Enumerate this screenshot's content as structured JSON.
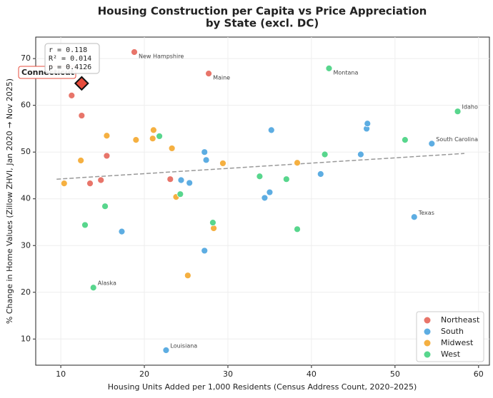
{
  "chart_data": {
    "type": "scatter",
    "title": [
      "Housing Construction per Capita vs Price Appreciation",
      "by State (excl. DC)"
    ],
    "x_label": "Housing Units Added per 1,000 Residents (Census Address Count, 2020–2025)",
    "y_label": "% Change in Home Values (Zillow ZHVI, Jan 2020 → Nov 2025)",
    "xlim": [
      7.0,
      61.3
    ],
    "ylim": [
      4.4,
      74.6
    ],
    "xticks": [
      10,
      20,
      30,
      40,
      50,
      60
    ],
    "yticks": [
      10,
      20,
      30,
      40,
      50,
      60,
      70
    ],
    "grid": true,
    "legend": "lower right",
    "stats": [
      "r = 0.118",
      "R² = 0.014",
      "p = 0.4126"
    ],
    "trendline": {
      "color": "#999999",
      "x": [
        9.5,
        58.3
      ],
      "y": [
        44.2,
        49.7
      ]
    },
    "highlight": {
      "label": "Connecticut",
      "color": "#e74c3c",
      "x": 12.5,
      "y": 64.7
    },
    "series": [
      {
        "name": "Northeast",
        "color": "#e8756a",
        "x": [
          18.8,
          27.7,
          11.3,
          12.5,
          15.5,
          13.5,
          14.8,
          23.1
        ],
        "y": [
          71.4,
          66.8,
          62.1,
          57.8,
          49.2,
          43.3,
          44.0,
          44.2
        ],
        "labels": [
          "New Hampshire",
          "Maine",
          null,
          null,
          null,
          null,
          null,
          null
        ]
      },
      {
        "name": "South",
        "color": "#5dade2",
        "x": [
          17.3,
          22.6,
          24.4,
          25.4,
          27.2,
          27.4,
          27.2,
          35.2,
          34.4,
          35.0,
          41.1,
          45.9,
          46.6,
          46.7,
          54.4,
          52.3
        ],
        "y": [
          33.0,
          7.6,
          44.0,
          43.4,
          50.0,
          48.3,
          28.9,
          54.7,
          40.2,
          41.4,
          45.3,
          49.5,
          55.0,
          56.1,
          51.8,
          36.1
        ],
        "labels": [
          null,
          "Louisiana",
          null,
          null,
          null,
          null,
          null,
          null,
          null,
          null,
          null,
          null,
          null,
          null,
          "South Carolina",
          "Texas"
        ]
      },
      {
        "name": "Midwest",
        "color": "#f5b041",
        "x": [
          10.4,
          12.4,
          15.5,
          19.0,
          21.0,
          21.1,
          23.3,
          23.8,
          29.4,
          38.3,
          28.3,
          25.2
        ],
        "y": [
          43.3,
          48.2,
          53.5,
          52.6,
          52.9,
          54.7,
          50.8,
          40.4,
          47.6,
          47.7,
          33.7,
          23.6
        ],
        "labels": [
          null,
          null,
          null,
          null,
          null,
          null,
          null,
          null,
          null,
          null,
          null,
          null
        ]
      },
      {
        "name": "West",
        "color": "#58d68d",
        "x": [
          13.9,
          12.9,
          15.3,
          21.8,
          24.3,
          28.2,
          33.8,
          37.0,
          38.3,
          41.6,
          42.1,
          51.2,
          57.5
        ],
        "y": [
          21.0,
          34.4,
          38.4,
          53.4,
          41.0,
          34.9,
          44.8,
          44.2,
          33.5,
          49.5,
          67.9,
          52.6,
          58.7
        ],
        "labels": [
          "Alaska",
          null,
          null,
          null,
          null,
          null,
          null,
          null,
          null,
          null,
          "Montana",
          null,
          "Idaho"
        ]
      }
    ]
  }
}
